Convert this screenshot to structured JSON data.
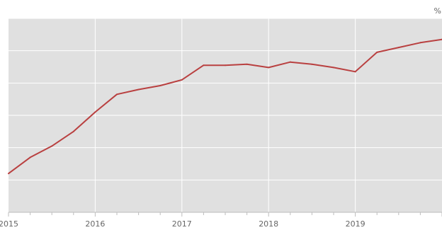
{
  "chart_data": {
    "type": "line",
    "unit_label": "%",
    "x_tick_labels": [
      "2015",
      "2016",
      "2017",
      "2018",
      "2019"
    ],
    "x_range": [
      2015,
      2020
    ],
    "y_range": [
      0,
      6
    ],
    "grid": true,
    "legend": "none",
    "series": [
      {
        "x": [
          2015.0,
          2015.25,
          2015.5,
          2015.75,
          2016.0,
          2016.25,
          2016.5,
          2016.75,
          2017.0,
          2017.25,
          2017.5,
          2017.75,
          2018.0,
          2018.25,
          2018.5,
          2018.75,
          2019.0,
          2019.25,
          2019.5,
          2019.75,
          2020.0
        ],
        "values": [
          1.2,
          1.7,
          2.05,
          2.5,
          3.1,
          3.65,
          3.8,
          3.92,
          4.1,
          4.55,
          4.55,
          4.58,
          4.48,
          4.65,
          4.58,
          4.48,
          4.35,
          4.95,
          5.1,
          5.25,
          5.35
        ]
      }
    ],
    "colors": {
      "line": "#b94040",
      "plot_bg": "#e0e0e0",
      "grid": "#ffffff",
      "text": "#666666"
    }
  }
}
